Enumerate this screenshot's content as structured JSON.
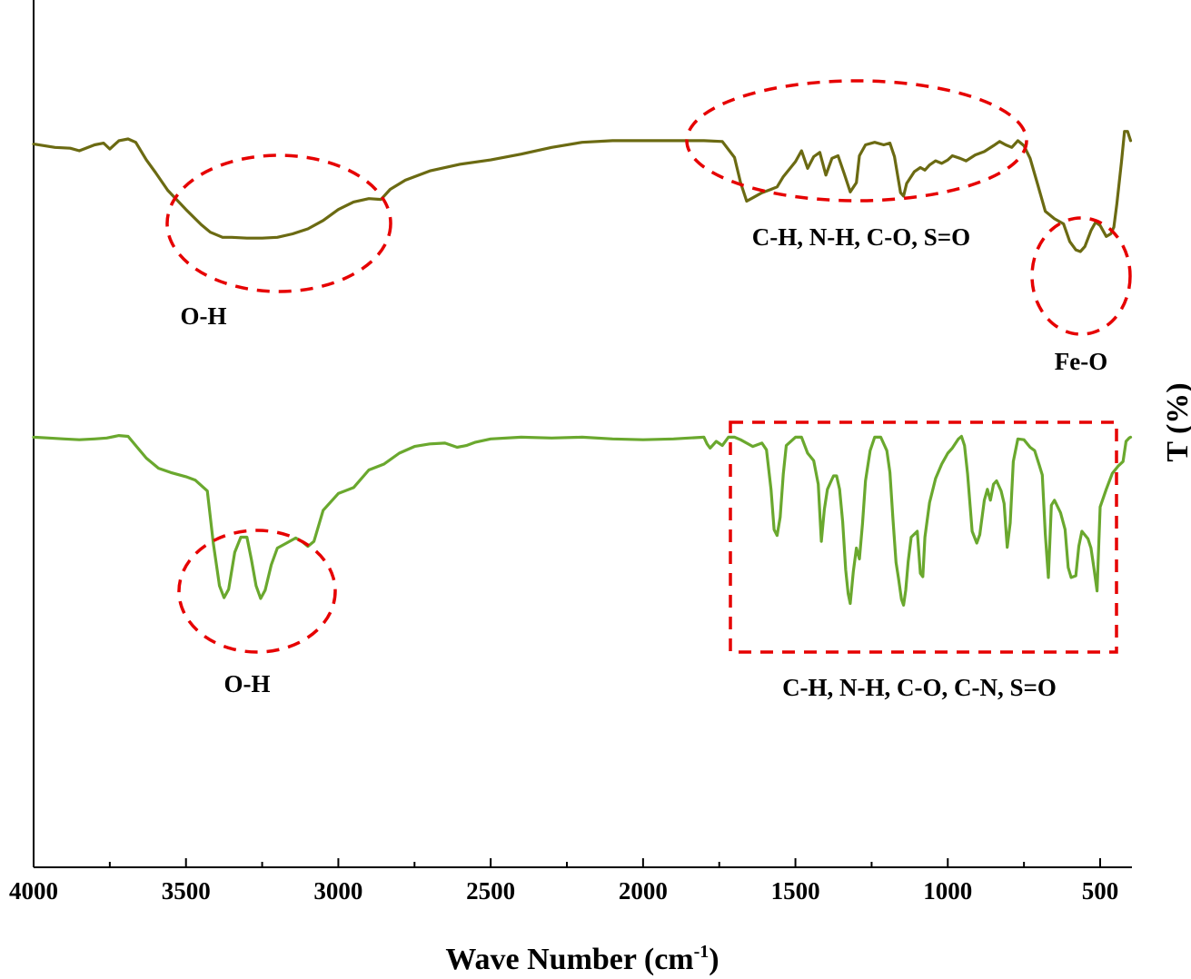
{
  "chart_data": {
    "type": "line",
    "xlabel": "Wave Number (cm",
    "xlabel_sup": "-1",
    "xlabel_close": ")",
    "ylabel": "T (%)",
    "xlim": [
      4000,
      400
    ],
    "ylim": [
      0,
      100
    ],
    "x_reversed": true,
    "xticks": [
      4000,
      3500,
      3000,
      2500,
      2000,
      1500,
      1000,
      500
    ],
    "xtick_labels": [
      "4000",
      "3500",
      "3000",
      "2500",
      "2000",
      "1500",
      "1000",
      "500"
    ],
    "y_tick_labels_shown": false,
    "grid": false,
    "legend": "none",
    "colors": {
      "top": "#6b6a12",
      "bottom": "#6aa82e",
      "annotation": "#e60000"
    },
    "annotations": [
      {
        "text": "O-H"
      },
      {
        "text": "C-H, N-H, C-O, S=O"
      },
      {
        "text": "Fe-O"
      },
      {
        "text": "O-H"
      },
      {
        "text": "C-H, N-H, C-O, C-N, S=O"
      }
    ],
    "series": [
      {
        "points": [
          [
            4000,
            86.1
          ],
          [
            3930,
            85.7
          ],
          [
            3880,
            85.6
          ],
          [
            3850,
            85.3
          ],
          [
            3800,
            86.0
          ],
          [
            3770,
            86.2
          ],
          [
            3750,
            85.5
          ],
          [
            3720,
            86.5
          ],
          [
            3690,
            86.7
          ],
          [
            3665,
            86.3
          ],
          [
            3630,
            84.2
          ],
          [
            3600,
            82.7
          ],
          [
            3560,
            80.6
          ],
          [
            3500,
            78.3
          ],
          [
            3450,
            76.5
          ],
          [
            3420,
            75.6
          ],
          [
            3380,
            75.0
          ],
          [
            3350,
            75.0
          ],
          [
            3300,
            74.9
          ],
          [
            3250,
            74.9
          ],
          [
            3200,
            75.0
          ],
          [
            3150,
            75.4
          ],
          [
            3100,
            76.0
          ],
          [
            3050,
            77.0
          ],
          [
            3000,
            78.3
          ],
          [
            2950,
            79.2
          ],
          [
            2900,
            79.6
          ],
          [
            2860,
            79.5
          ],
          [
            2830,
            80.7
          ],
          [
            2780,
            81.8
          ],
          [
            2700,
            82.9
          ],
          [
            2600,
            83.7
          ],
          [
            2500,
            84.2
          ],
          [
            2400,
            84.9
          ],
          [
            2300,
            85.7
          ],
          [
            2200,
            86.3
          ],
          [
            2100,
            86.5
          ],
          [
            2000,
            86.5
          ],
          [
            1900,
            86.5
          ],
          [
            1800,
            86.5
          ],
          [
            1740,
            86.4
          ],
          [
            1700,
            84.5
          ],
          [
            1680,
            81.5
          ],
          [
            1660,
            79.3
          ],
          [
            1640,
            79.7
          ],
          [
            1610,
            80.3
          ],
          [
            1580,
            80.7
          ],
          [
            1560,
            81.0
          ],
          [
            1540,
            82.2
          ],
          [
            1500,
            84.0
          ],
          [
            1480,
            85.3
          ],
          [
            1460,
            83.2
          ],
          [
            1440,
            84.6
          ],
          [
            1420,
            85.1
          ],
          [
            1400,
            82.4
          ],
          [
            1380,
            84.4
          ],
          [
            1360,
            84.7
          ],
          [
            1340,
            82.6
          ],
          [
            1320,
            80.4
          ],
          [
            1300,
            81.5
          ],
          [
            1290,
            84.7
          ],
          [
            1270,
            86.0
          ],
          [
            1240,
            86.3
          ],
          [
            1210,
            86.0
          ],
          [
            1190,
            86.2
          ],
          [
            1175,
            84.6
          ],
          [
            1155,
            80.3
          ],
          [
            1145,
            79.9
          ],
          [
            1135,
            81.4
          ],
          [
            1110,
            82.8
          ],
          [
            1090,
            83.3
          ],
          [
            1075,
            83.0
          ],
          [
            1060,
            83.6
          ],
          [
            1040,
            84.1
          ],
          [
            1020,
            83.8
          ],
          [
            1000,
            84.2
          ],
          [
            985,
            84.7
          ],
          [
            960,
            84.4
          ],
          [
            940,
            84.1
          ],
          [
            910,
            84.8
          ],
          [
            880,
            85.2
          ],
          [
            850,
            85.9
          ],
          [
            830,
            86.4
          ],
          [
            810,
            86.0
          ],
          [
            790,
            85.7
          ],
          [
            770,
            86.5
          ],
          [
            750,
            85.9
          ],
          [
            730,
            84.4
          ],
          [
            705,
            81.3
          ],
          [
            680,
            78.1
          ],
          [
            650,
            77.2
          ],
          [
            620,
            76.6
          ],
          [
            600,
            74.5
          ],
          [
            580,
            73.5
          ],
          [
            565,
            73.3
          ],
          [
            550,
            73.9
          ],
          [
            530,
            75.8
          ],
          [
            515,
            76.8
          ],
          [
            500,
            76.4
          ],
          [
            480,
            75.1
          ],
          [
            465,
            75.4
          ],
          [
            455,
            76.2
          ],
          [
            445,
            79.0
          ],
          [
            430,
            84.0
          ],
          [
            420,
            87.6
          ],
          [
            410,
            87.6
          ],
          [
            400,
            86.5
          ]
        ]
      },
      {
        "points": [
          [
            4000,
            51.2
          ],
          [
            3950,
            51.1
          ],
          [
            3900,
            51.0
          ],
          [
            3850,
            50.9
          ],
          [
            3800,
            51.0
          ],
          [
            3760,
            51.1
          ],
          [
            3720,
            51.4
          ],
          [
            3690,
            51.3
          ],
          [
            3660,
            50.0
          ],
          [
            3630,
            48.7
          ],
          [
            3590,
            47.5
          ],
          [
            3550,
            47.0
          ],
          [
            3500,
            46.5
          ],
          [
            3470,
            46.1
          ],
          [
            3430,
            44.8
          ],
          [
            3410,
            38.5
          ],
          [
            3390,
            33.5
          ],
          [
            3375,
            32.1
          ],
          [
            3360,
            33.1
          ],
          [
            3340,
            37.5
          ],
          [
            3320,
            39.3
          ],
          [
            3300,
            39.3
          ],
          [
            3285,
            36.6
          ],
          [
            3270,
            33.5
          ],
          [
            3255,
            32.0
          ],
          [
            3240,
            33.0
          ],
          [
            3220,
            36.0
          ],
          [
            3200,
            38.0
          ],
          [
            3170,
            38.6
          ],
          [
            3140,
            39.2
          ],
          [
            3120,
            38.8
          ],
          [
            3100,
            38.2
          ],
          [
            3080,
            38.8
          ],
          [
            3050,
            42.5
          ],
          [
            3000,
            44.5
          ],
          [
            2950,
            45.2
          ],
          [
            2900,
            47.3
          ],
          [
            2850,
            48.0
          ],
          [
            2800,
            49.3
          ],
          [
            2750,
            50.1
          ],
          [
            2700,
            50.4
          ],
          [
            2650,
            50.5
          ],
          [
            2610,
            50.0
          ],
          [
            2580,
            50.2
          ],
          [
            2550,
            50.6
          ],
          [
            2500,
            51.0
          ],
          [
            2400,
            51.2
          ],
          [
            2300,
            51.1
          ],
          [
            2200,
            51.2
          ],
          [
            2100,
            51.0
          ],
          [
            2000,
            50.9
          ],
          [
            1900,
            51.0
          ],
          [
            1850,
            51.1
          ],
          [
            1800,
            51.2
          ],
          [
            1790,
            50.4
          ],
          [
            1780,
            49.9
          ],
          [
            1760,
            50.7
          ],
          [
            1740,
            50.2
          ],
          [
            1720,
            51.2
          ],
          [
            1700,
            51.2
          ],
          [
            1680,
            50.9
          ],
          [
            1640,
            50.1
          ],
          [
            1610,
            50.5
          ],
          [
            1595,
            49.7
          ],
          [
            1580,
            45.0
          ],
          [
            1570,
            40.2
          ],
          [
            1560,
            39.5
          ],
          [
            1550,
            41.7
          ],
          [
            1540,
            46.8
          ],
          [
            1530,
            50.2
          ],
          [
            1500,
            51.2
          ],
          [
            1480,
            51.2
          ],
          [
            1460,
            49.3
          ],
          [
            1440,
            48.4
          ],
          [
            1425,
            45.6
          ],
          [
            1415,
            38.8
          ],
          [
            1405,
            42.6
          ],
          [
            1395,
            45.0
          ],
          [
            1385,
            45.8
          ],
          [
            1375,
            46.6
          ],
          [
            1365,
            46.6
          ],
          [
            1355,
            45.0
          ],
          [
            1345,
            41.1
          ],
          [
            1335,
            35.4
          ],
          [
            1327,
            32.6
          ],
          [
            1320,
            31.4
          ],
          [
            1310,
            35.2
          ],
          [
            1300,
            38.0
          ],
          [
            1290,
            36.7
          ],
          [
            1280,
            40.9
          ],
          [
            1270,
            46.0
          ],
          [
            1255,
            49.6
          ],
          [
            1240,
            51.2
          ],
          [
            1220,
            51.2
          ],
          [
            1200,
            49.6
          ],
          [
            1190,
            47.0
          ],
          [
            1180,
            41.5
          ],
          [
            1170,
            36.3
          ],
          [
            1162,
            34.5
          ],
          [
            1152,
            31.9
          ],
          [
            1145,
            31.2
          ],
          [
            1138,
            33.0
          ],
          [
            1130,
            36.4
          ],
          [
            1120,
            39.3
          ],
          [
            1100,
            40.0
          ],
          [
            1090,
            35.0
          ],
          [
            1082,
            34.6
          ],
          [
            1075,
            39.3
          ],
          [
            1060,
            43.4
          ],
          [
            1040,
            46.3
          ],
          [
            1020,
            48.0
          ],
          [
            1000,
            49.3
          ],
          [
            985,
            49.9
          ],
          [
            965,
            51.0
          ],
          [
            955,
            51.3
          ],
          [
            945,
            50.2
          ],
          [
            935,
            46.8
          ],
          [
            920,
            40.0
          ],
          [
            905,
            38.6
          ],
          [
            895,
            39.6
          ],
          [
            880,
            43.7
          ],
          [
            870,
            45.0
          ],
          [
            860,
            43.7
          ],
          [
            850,
            45.6
          ],
          [
            840,
            46.0
          ],
          [
            825,
            44.8
          ],
          [
            815,
            43.3
          ],
          [
            805,
            38.1
          ],
          [
            795,
            41.0
          ],
          [
            785,
            48.3
          ],
          [
            770,
            51.0
          ],
          [
            750,
            50.9
          ],
          [
            730,
            50.0
          ],
          [
            715,
            49.6
          ],
          [
            700,
            47.9
          ],
          [
            690,
            46.7
          ],
          [
            680,
            39.7
          ],
          [
            670,
            34.5
          ],
          [
            660,
            43.1
          ],
          [
            650,
            43.7
          ],
          [
            630,
            42.2
          ],
          [
            615,
            40.2
          ],
          [
            605,
            35.7
          ],
          [
            595,
            34.5
          ],
          [
            580,
            34.7
          ],
          [
            570,
            38.2
          ],
          [
            560,
            40.0
          ],
          [
            540,
            39.1
          ],
          [
            530,
            38.0
          ],
          [
            520,
            35.5
          ],
          [
            510,
            32.9
          ],
          [
            500,
            42.9
          ],
          [
            480,
            45.0
          ],
          [
            460,
            46.9
          ],
          [
            440,
            47.8
          ],
          [
            425,
            48.3
          ],
          [
            415,
            50.7
          ],
          [
            405,
            51.1
          ],
          [
            400,
            51.2
          ]
        ]
      }
    ]
  }
}
